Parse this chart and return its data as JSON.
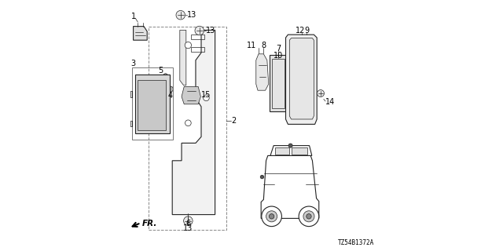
{
  "bg_color": "#ffffff",
  "diagram_code": "TZ54B1372A",
  "line_color": "#222222",
  "label_fontsize": 7
}
